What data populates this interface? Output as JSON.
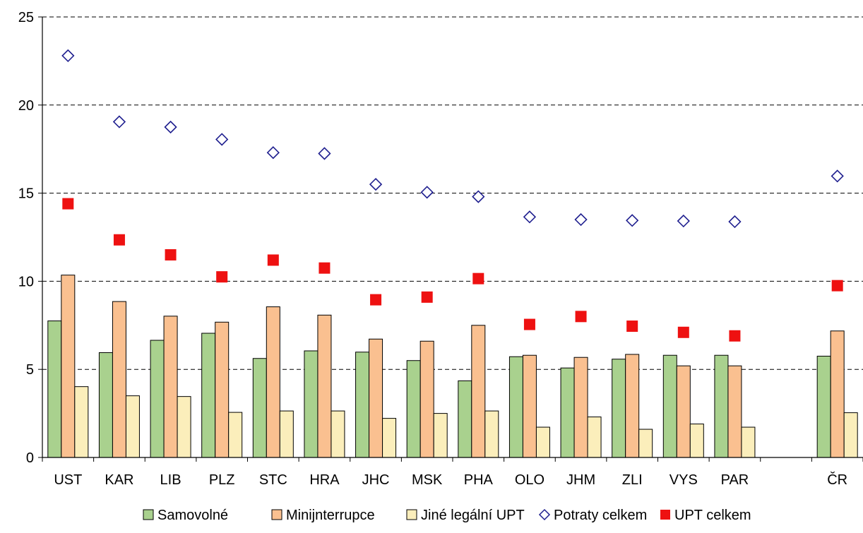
{
  "chart_data": {
    "type": "bar",
    "categories": [
      "UST",
      "KAR",
      "LIB",
      "PLZ",
      "STC",
      "HRA",
      "JHC",
      "MSK",
      "PHA",
      "OLO",
      "JHM",
      "ZLI",
      "VYS",
      "PAR",
      "",
      "ČR"
    ],
    "ylim": [
      0,
      25
    ],
    "yticks": [
      "0",
      "5",
      "10",
      "15",
      "20",
      "25"
    ],
    "grid": "horizontal dashed",
    "legend_position": "bottom",
    "series": [
      {
        "name": "Samovolné",
        "type": "bar",
        "color": "#a9d18e",
        "values": [
          7.75,
          5.95,
          6.65,
          7.05,
          5.62,
          6.05,
          5.98,
          5.5,
          4.35,
          5.72,
          5.08,
          5.58,
          5.8,
          5.8,
          null,
          5.75
        ]
      },
      {
        "name": "Minijnterrupce",
        "type": "bar",
        "color": "#fac090",
        "values": [
          10.35,
          8.85,
          8.02,
          7.68,
          8.55,
          8.08,
          6.72,
          6.6,
          7.5,
          5.8,
          5.68,
          5.85,
          5.2,
          5.2,
          null,
          7.18
        ]
      },
      {
        "name": "Jiné legální UPT",
        "type": "bar",
        "color": "#fbeebb",
        "values": [
          4.02,
          3.5,
          3.46,
          2.56,
          2.64,
          2.64,
          2.22,
          2.5,
          2.64,
          1.72,
          2.3,
          1.6,
          1.9,
          1.72,
          null,
          2.54
        ]
      },
      {
        "name": "Potraty celkem",
        "type": "scatter",
        "marker": "diamond-open",
        "color": "#1f1f8f",
        "values": [
          22.8,
          19.05,
          18.75,
          18.05,
          17.3,
          17.25,
          15.5,
          15.05,
          14.8,
          13.65,
          13.5,
          13.45,
          13.42,
          13.38,
          null,
          15.97
        ]
      },
      {
        "name": "UPT celkem",
        "type": "scatter",
        "marker": "square",
        "color": "#ee1111",
        "values": [
          14.4,
          12.35,
          11.5,
          10.25,
          11.2,
          10.75,
          8.95,
          9.1,
          10.15,
          7.55,
          8.0,
          7.45,
          7.1,
          6.9,
          null,
          9.75
        ]
      }
    ]
  }
}
